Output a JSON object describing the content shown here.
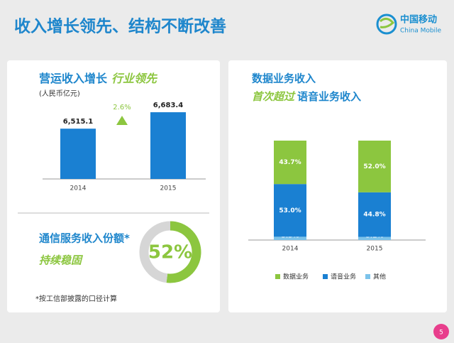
{
  "header": {
    "title": "收入增长领先、结构不断改善",
    "logo_cn": "中国移动",
    "logo_en": "China Mobile",
    "page": "5"
  },
  "chart_data": [
    {
      "type": "bar",
      "title": "营运收入增长",
      "title_highlight": "行业领先",
      "unit": "(人民币亿元)",
      "categories": [
        "2014",
        "2015"
      ],
      "values": [
        6515.1,
        6683.4
      ],
      "value_labels": [
        "6,515.1",
        "6,683.4"
      ],
      "color": "#1a80d2",
      "annotation": "2.6%",
      "ylim": [
        6000,
        6800
      ]
    },
    {
      "type": "donut",
      "title": "通信服务收入份额*",
      "subtitle": "持续稳固",
      "values": [
        52,
        48
      ],
      "value_labels": [
        "52%",
        null
      ],
      "colors": [
        "#8cc63f",
        "#d6d6d6"
      ],
      "footnote": "*按工信部披露的口径计算"
    },
    {
      "type": "stacked_bar",
      "title": "数据业务收入",
      "subtitle_highlight": "首次超过",
      "subtitle": "语音业务收入",
      "categories": [
        "2014",
        "2015"
      ],
      "ylim": [
        0,
        100
      ],
      "series": [
        {
          "name": "数据业务",
          "color": "#8cc63f",
          "values": [
            43.7,
            52.0
          ],
          "value_labels": [
            "43.7%",
            "52.0%"
          ]
        },
        {
          "name": "语音业务",
          "color": "#1a80d2",
          "values": [
            53.0,
            44.8
          ],
          "value_labels": [
            "53.0%",
            "44.8%"
          ]
        },
        {
          "name": "其他",
          "color": "#7cc3ea",
          "values": [
            3.3,
            3.2
          ],
          "value_labels": [
            "3.3%",
            "3.2%"
          ]
        }
      ]
    }
  ]
}
